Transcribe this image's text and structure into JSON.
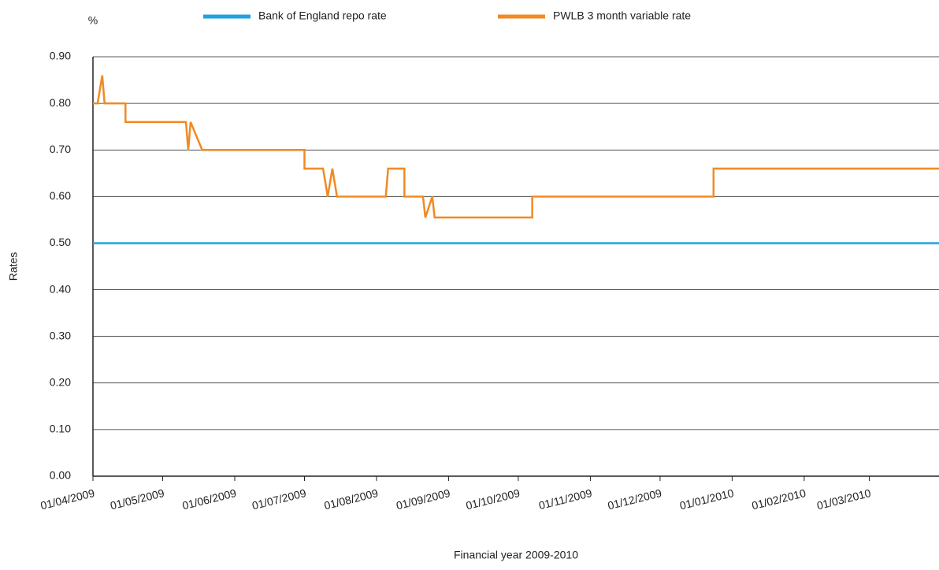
{
  "chart_data": {
    "type": "line",
    "y_unit": "%",
    "ylabel": "Rates",
    "xlabel": "Financial year 2009-2010",
    "xlim": [
      "2009-04-01",
      "2010-03-31"
    ],
    "xticks": [
      {
        "value": "2009-04-01",
        "label": "01/04/2009"
      },
      {
        "value": "2009-05-01",
        "label": "01/05/2009"
      },
      {
        "value": "2009-06-01",
        "label": "01/06/2009"
      },
      {
        "value": "2009-07-01",
        "label": "01/07/2009"
      },
      {
        "value": "2009-08-01",
        "label": "01/08/2009"
      },
      {
        "value": "2009-09-01",
        "label": "01/09/2009"
      },
      {
        "value": "2009-10-01",
        "label": "01/10/2009"
      },
      {
        "value": "2009-11-01",
        "label": "01/11/2009"
      },
      {
        "value": "2009-12-01",
        "label": "01/12/2009"
      },
      {
        "value": "2010-01-01",
        "label": "01/01/2010"
      },
      {
        "value": "2010-02-01",
        "label": "01/02/2010"
      },
      {
        "value": "2010-03-01",
        "label": "01/03/2010"
      }
    ],
    "ylim": [
      0,
      0.9
    ],
    "yticks": [
      {
        "value": 0,
        "label": "0.00"
      },
      {
        "value": 0.1,
        "label": "0.10"
      },
      {
        "value": 0.2,
        "label": "0.20"
      },
      {
        "value": 0.3,
        "label": "0.30"
      },
      {
        "value": 0.4,
        "label": "0.40"
      },
      {
        "value": 0.5,
        "label": "0.50"
      },
      {
        "value": 0.6,
        "label": "0.60"
      },
      {
        "value": 0.7,
        "label": "0.70"
      },
      {
        "value": 0.8,
        "label": "0.80"
      },
      {
        "value": 0.9,
        "label": "0.90"
      }
    ],
    "grid": true,
    "legend": "top",
    "series": [
      {
        "name": "Bank of England repo rate",
        "color": "#1fa3dc",
        "x": [
          "2009-04-01",
          "2010-03-31"
        ],
        "values": [
          0.5,
          0.5
        ]
      },
      {
        "name": "PWLB 3 month variable rate",
        "color": "#f08a24",
        "x": [
          "2009-04-01",
          "2009-04-03",
          "2009-04-05",
          "2009-04-06",
          "2009-04-15",
          "2009-04-15",
          "2009-05-11",
          "2009-05-12",
          "2009-05-13",
          "2009-05-18",
          "2009-07-01",
          "2009-07-01",
          "2009-07-09",
          "2009-07-11",
          "2009-07-13",
          "2009-07-15",
          "2009-08-05",
          "2009-08-06",
          "2009-08-13",
          "2009-08-13",
          "2009-08-21",
          "2009-08-22",
          "2009-08-25",
          "2009-08-26",
          "2009-10-07",
          "2009-10-07",
          "2009-12-24",
          "2009-12-24",
          "2010-03-31"
        ],
        "values": [
          0.8,
          0.8,
          0.86,
          0.8,
          0.8,
          0.76,
          0.76,
          0.7,
          0.76,
          0.7,
          0.7,
          0.66,
          0.66,
          0.6,
          0.66,
          0.6,
          0.6,
          0.66,
          0.66,
          0.6,
          0.6,
          0.555,
          0.6,
          0.555,
          0.555,
          0.6,
          0.6,
          0.66,
          0.66
        ]
      }
    ]
  }
}
